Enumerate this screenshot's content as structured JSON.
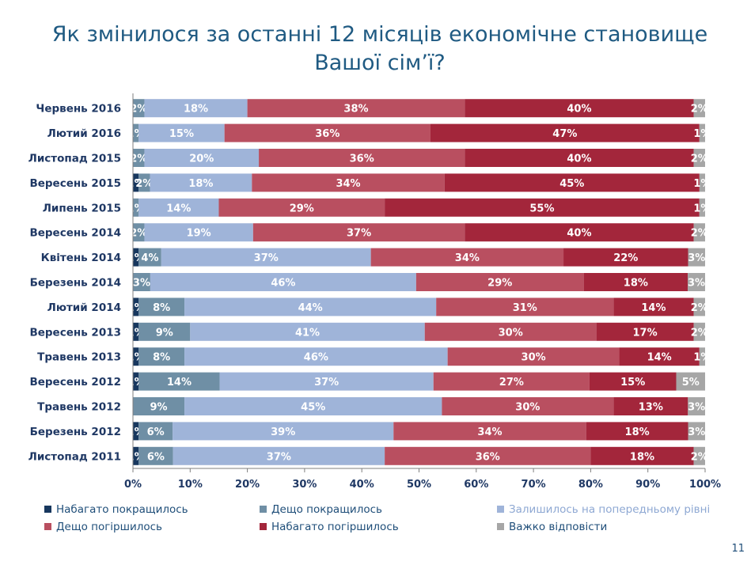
{
  "slide": {
    "title": "Як змінилося за останні 12 місяців економічне становище Вашої сім’ї?",
    "page_number": "11"
  },
  "chart_data": {
    "type": "bar",
    "orientation": "horizontal",
    "stacked": true,
    "percent_stacked": true,
    "categories": [
      "Червень 2016",
      "Лютий 2016",
      "Листопад 2015",
      "Вересень 2015",
      "Липень 2015",
      "Вересень 2014",
      "Квітень 2014",
      "Березень 2014",
      "Лютий 2014",
      "Вересень 2013",
      "Травень 2013",
      "Вересень 2012",
      "Травень 2012",
      "Березень 2012",
      "Листопад 2011"
    ],
    "series": [
      {
        "name": "Набагато покращилось",
        "color": "#17375e",
        "values": [
          0,
          0,
          0,
          1,
          0,
          0,
          1,
          0,
          1,
          1,
          1,
          1,
          0,
          1,
          1
        ],
        "labels": [
          "",
          "",
          "",
          "1%",
          "",
          "",
          "1%",
          "",
          "1%",
          "1%",
          "1%",
          "1%",
          "",
          "1%",
          "1%"
        ]
      },
      {
        "name": "Дещо покращилось",
        "color": "#6f8fa5",
        "values": [
          2,
          1,
          2,
          2,
          1,
          2,
          4,
          3,
          8,
          9,
          8,
          14,
          9,
          6,
          6
        ],
        "labels": [
          "2%",
          "1%",
          "2%",
          "2%",
          "1%",
          "2%",
          "4%",
          "3%",
          "8%",
          "9%",
          "8%",
          "14%",
          "9%",
          "6%",
          "6%"
        ]
      },
      {
        "name": "Залишилось на попередньому рівні",
        "color": "#9fb4d9",
        "values": [
          18,
          15,
          20,
          18,
          14,
          19,
          37,
          46,
          44,
          41,
          46,
          37,
          45,
          39,
          37
        ],
        "labels": [
          "18%",
          "15%",
          "20%",
          "18%",
          "14%",
          "19%",
          "37%",
          "46%",
          "44%",
          "41%",
          "46%",
          "37%",
          "45%",
          "39%",
          "37%"
        ]
      },
      {
        "name": "Дещо погіршилось",
        "color": "#b94f60",
        "values": [
          38,
          36,
          36,
          34,
          29,
          37,
          34,
          29,
          31,
          30,
          30,
          27,
          30,
          34,
          36
        ],
        "labels": [
          "38%",
          "36%",
          "36%",
          "34%",
          "29%",
          "37%",
          "34%",
          "29%",
          "31%",
          "30%",
          "30%",
          "27%",
          "30%",
          "34%",
          "36%"
        ]
      },
      {
        "name": "Набагато погіршилось",
        "color": "#a3263b",
        "values": [
          40,
          47,
          40,
          45,
          55,
          40,
          22,
          18,
          14,
          17,
          14,
          15,
          13,
          18,
          18
        ],
        "labels": [
          "40%",
          "47%",
          "40%",
          "45%",
          "55%",
          "40%",
          "22%",
          "18%",
          "14%",
          "17%",
          "14%",
          "15%",
          "13%",
          "18%",
          "18%"
        ]
      },
      {
        "name": "Важко відповісти",
        "color": "#a6a6a6",
        "values": [
          2,
          1,
          2,
          1,
          1,
          2,
          3,
          3,
          2,
          2,
          1,
          5,
          3,
          3,
          2
        ],
        "labels": [
          "2%",
          "1%",
          "2%",
          "1%",
          "1%",
          "2%",
          "3%",
          "3%",
          "2%",
          "2%",
          "1%",
          "5%",
          "3%",
          "3%",
          "2%"
        ]
      }
    ],
    "x_ticks": [
      "0%",
      "10%",
      "20%",
      "30%",
      "40%",
      "50%",
      "60%",
      "70%",
      "80%",
      "90%",
      "100%"
    ],
    "xlim": [
      0,
      100
    ],
    "legend_position": "bottom",
    "grid": false
  }
}
